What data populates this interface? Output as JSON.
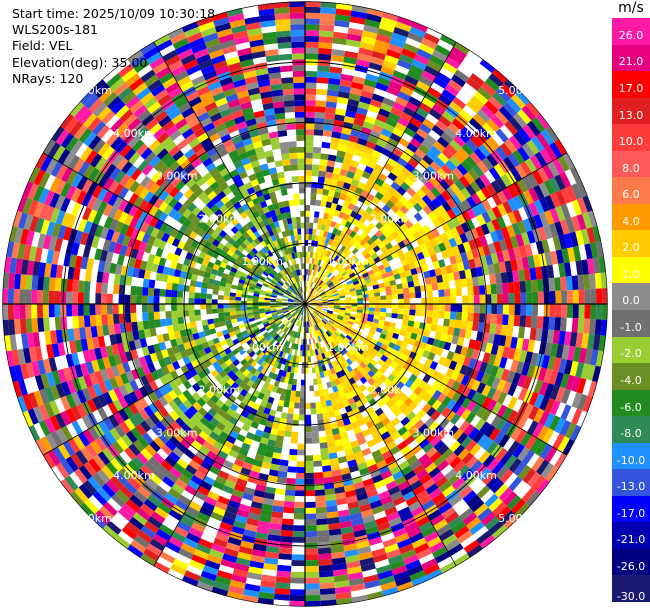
{
  "info": {
    "start_time": "Start time: 2025/10/09 10:30:18",
    "instrument": "WLS200s-181",
    "field": "Field: VEL",
    "elevation": "Elevation(deg): 35.00",
    "nrays": "NRays: 120"
  },
  "range_rings": {
    "labels": [
      "1.00km",
      "2.00km",
      "3.00km",
      "4.00km",
      "5.00km"
    ],
    "values_km": [
      1,
      2,
      3,
      4,
      5
    ]
  },
  "colorbar": {
    "unit": "m/s",
    "ticks": [
      "26.0",
      "21.0",
      "17.0",
      "13.0",
      "10.0",
      "8.0",
      "6.0",
      "4.0",
      "2.0",
      "1.0",
      "0.0",
      "-1.0",
      "-2.0",
      "-4.0",
      "-6.0",
      "-8.0",
      "-10.0",
      "-13.0",
      "-17.0",
      "-21.0",
      "-26.0",
      "-30.0"
    ],
    "colors": [
      "#ff1aa5",
      "#e6007f",
      "#ff0000",
      "#e02020",
      "#ff3c3c",
      "#ff5a5a",
      "#ff7a4a",
      "#ff9900",
      "#ffcc00",
      "#ffff00",
      "#8c8c8c",
      "#707070",
      "#9acd32",
      "#6b8e23",
      "#228b22",
      "#2e8b57",
      "#1e90ff",
      "#3355dd",
      "#0000ff",
      "#0000b0",
      "#000080",
      "#191970"
    ]
  }
}
